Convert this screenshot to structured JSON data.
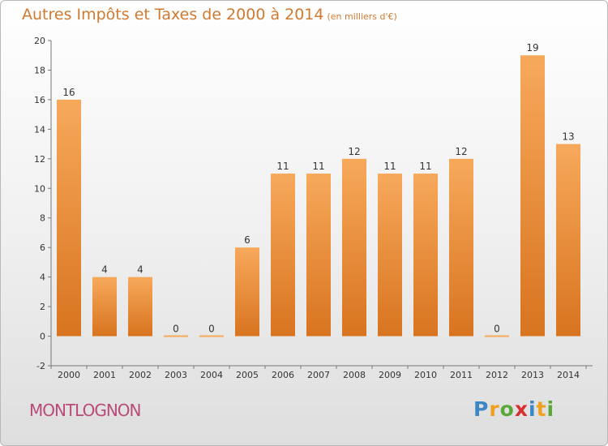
{
  "title": "Autres Impôts et Taxes de 2000 à 2014",
  "unit": "(en milliers d'€)",
  "location": "MONTLOGNON",
  "logo": {
    "letters": [
      "P",
      "r",
      "o",
      "x",
      "i",
      "t",
      "i"
    ],
    "colors": [
      "#3c86c6",
      "#f0a020",
      "#5aa83a",
      "#d83030",
      "#3c86c6",
      "#f0a020",
      "#5aa83a"
    ],
    "icon": "proxiti-logo"
  },
  "colors": {
    "bar_light": "#f7a95b",
    "bar_dark": "#d8741f",
    "text": "#d07a30",
    "location": "#b94a7a"
  },
  "chart_data": {
    "type": "bar",
    "title": "Autres Impôts et Taxes de 2000 à 2014",
    "subtitle": "(en milliers d'€)",
    "categories": [
      "2000",
      "2001",
      "2002",
      "2003",
      "2004",
      "2005",
      "2006",
      "2007",
      "2008",
      "2009",
      "2010",
      "2011",
      "2012",
      "2013",
      "2014"
    ],
    "values": [
      16,
      4,
      4,
      0,
      0,
      6,
      11,
      11,
      12,
      11,
      11,
      12,
      0,
      19,
      13
    ],
    "ylim": [
      -2,
      20
    ],
    "yticks": [
      -2,
      0,
      2,
      4,
      6,
      8,
      10,
      12,
      14,
      16,
      18,
      20
    ],
    "xlabel": "",
    "ylabel": "",
    "grid": false,
    "legend": "none"
  }
}
